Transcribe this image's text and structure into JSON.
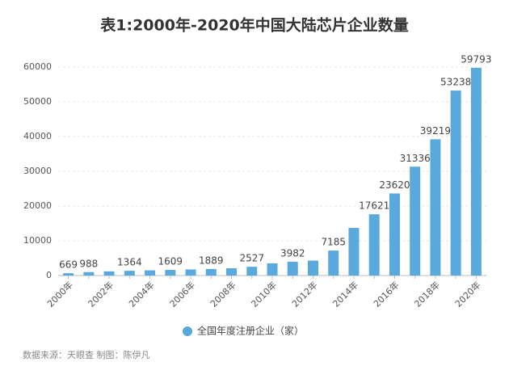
{
  "chart_data": {
    "type": "bar",
    "title": "表1:2000年-2020年中国大陆芯片企业数量",
    "categories": [
      "2000年",
      null,
      "2002年",
      null,
      "2004年",
      null,
      "2006年",
      null,
      "2008年",
      null,
      "2010年",
      null,
      "2012年",
      null,
      "2014年",
      null,
      "2016年",
      null,
      "2018年",
      null,
      "2020年"
    ],
    "series": [
      {
        "name": "全国年度注册企业（家）",
        "color": "#5aa9dc",
        "values": [
          669,
          988,
          1200,
          1364,
          1500,
          1609,
          1750,
          1889,
          2100,
          2527,
          3500,
          3982,
          4300,
          7185,
          13700,
          17621,
          23620,
          31336,
          39219,
          53238,
          59793
        ],
        "value_labels": [
          "669",
          "988",
          null,
          "1364",
          null,
          "1609",
          null,
          "1889",
          null,
          "2527",
          null,
          "3982",
          null,
          "7185",
          null,
          "17621",
          "23620",
          "31336",
          "39219",
          "53238",
          "59793"
        ]
      }
    ],
    "ylim": [
      0,
      60000
    ],
    "yticks": [
      0,
      10000,
      20000,
      30000,
      40000,
      50000,
      60000
    ],
    "grid": true,
    "legend": "bottom",
    "source": "数据来源：天眼查 制图：陈伊凡"
  }
}
